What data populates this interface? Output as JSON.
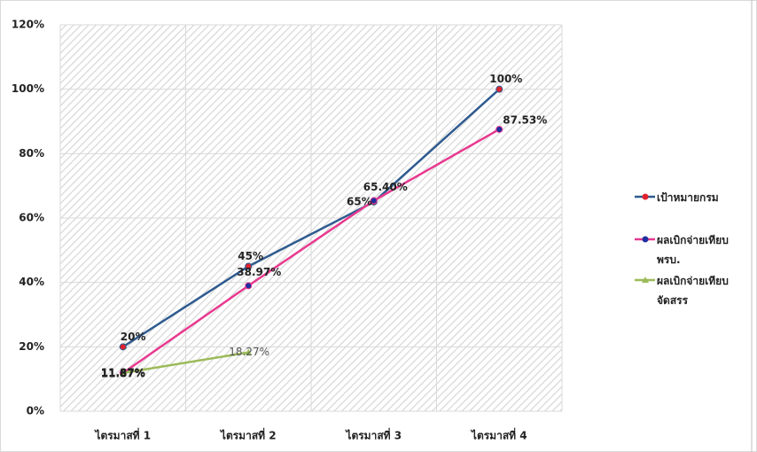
{
  "chart_data": {
    "type": "line",
    "categories": [
      "ไตรมาสที่ 1",
      "ไตรมาสที่ 2",
      "ไตรมาสที่ 3",
      "ไตรมาสที่ 4"
    ],
    "series": [
      {
        "name": "เป้าหมายกรม",
        "color": "#2f5b8f",
        "marker_color": "#e0222f",
        "marker": "circle",
        "values": [
          20,
          45,
          65,
          100
        ],
        "value_labels": [
          "20%",
          "45%",
          "65%",
          "100%"
        ]
      },
      {
        "name": "ผลเบิกจ่ายเทียบ พรบ.",
        "color": "#e8398f",
        "marker_color": "#1f2f9e",
        "marker": "circle",
        "values": [
          11.87,
          38.97,
          65.4,
          87.53
        ],
        "value_labels": [
          "11.87%",
          "38.97%",
          "65.40%",
          "87.53%"
        ]
      },
      {
        "name": "ผลเบิกจ่ายเทียบ จัดสรร",
        "color": "#9bbb59",
        "marker_color": "#9bbb59",
        "marker": "triangle",
        "values": [
          11.87,
          18.27,
          null,
          null
        ],
        "value_labels": [
          "11.87%",
          "18.27%",
          null,
          null
        ]
      }
    ],
    "ylim": [
      0,
      120
    ],
    "yticks": [
      {
        "value": 0,
        "label": "0%"
      },
      {
        "value": 20,
        "label": "20%"
      },
      {
        "value": 40,
        "label": "40%"
      },
      {
        "value": 60,
        "label": "60%"
      },
      {
        "value": 80,
        "label": "80%"
      },
      {
        "value": 100,
        "label": "100%"
      },
      {
        "value": 120,
        "label": "120%"
      }
    ],
    "grid": true
  }
}
